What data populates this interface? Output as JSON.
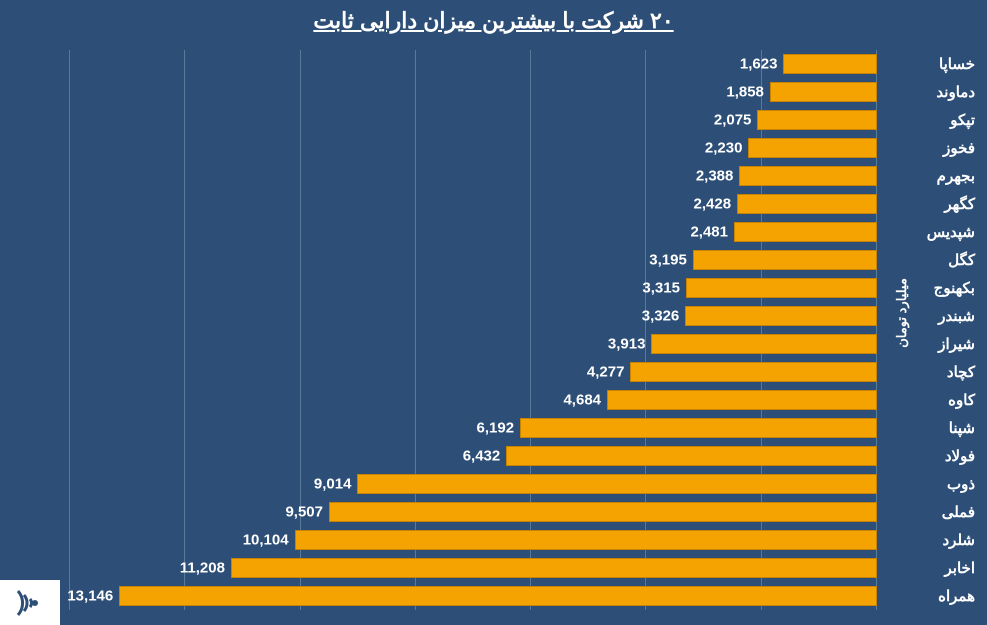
{
  "chart": {
    "type": "bar-horizontal",
    "title": "۲۰ شرکت با بیشترین میزان دارایی ثابت",
    "title_fontsize": 22,
    "y_axis_label": "میلیارد تومان",
    "y_axis_fontsize": 13,
    "background_color": "#2d4f77",
    "grid_color": "#5a7a9c",
    "bar_color": "#f4a300",
    "bar_border_color": "#c78200",
    "label_color": "#ffffff",
    "label_fontsize": 15,
    "value_fontsize": 15,
    "cat_fontsize": 15,
    "xlim_max": 14000,
    "xtick_step": 2000,
    "bar_height_ratio": 0.68,
    "categories": [
      "خساپا",
      "دماوند",
      "تپکو",
      "فخوز",
      "بجهرم",
      "کگهر",
      "شپدیس",
      "کگل",
      "بکهنوج",
      "شبندر",
      "شیراز",
      "کچاد",
      "کاوه",
      "شپنا",
      "فولاد",
      "ذوب",
      "فملی",
      "شلرد",
      "اخابر",
      "همراه"
    ],
    "values": [
      1623,
      1858,
      2075,
      2230,
      2388,
      2428,
      2481,
      3195,
      3315,
      3326,
      3913,
      4277,
      4684,
      6192,
      6432,
      9014,
      9507,
      10104,
      11208,
      13146
    ],
    "value_labels": [
      "1,623",
      "1,858",
      "2,075",
      "2,230",
      "2,388",
      "2,428",
      "2,481",
      "3,195",
      "3,315",
      "3,326",
      "3,913",
      "4,277",
      "4,684",
      "6,192",
      "6,432",
      "9,014",
      "9,507",
      "10,104",
      "11,208",
      "13,146"
    ]
  }
}
